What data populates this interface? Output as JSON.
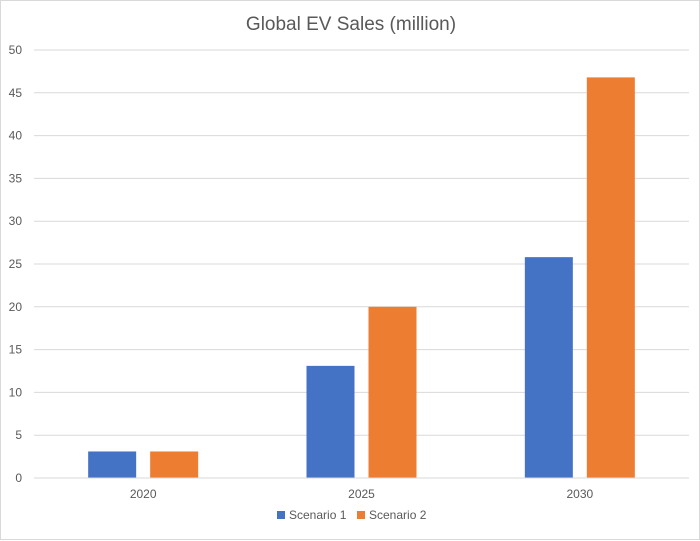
{
  "chart_data": {
    "type": "bar",
    "title": "Global EV Sales (million)",
    "categories": [
      "2020",
      "2025",
      "2030"
    ],
    "series": [
      {
        "name": "Scenario 1",
        "color": "#4472c4",
        "values": [
          3.1,
          13.1,
          25.8
        ]
      },
      {
        "name": "Scenario 2",
        "color": "#ed7d31",
        "values": [
          3.1,
          20.0,
          46.8
        ]
      }
    ],
    "ylim": [
      0,
      50
    ],
    "yticks": [
      0,
      5,
      10,
      15,
      20,
      25,
      30,
      35,
      40,
      45,
      50
    ],
    "grid": true,
    "legend_position": "bottom"
  }
}
